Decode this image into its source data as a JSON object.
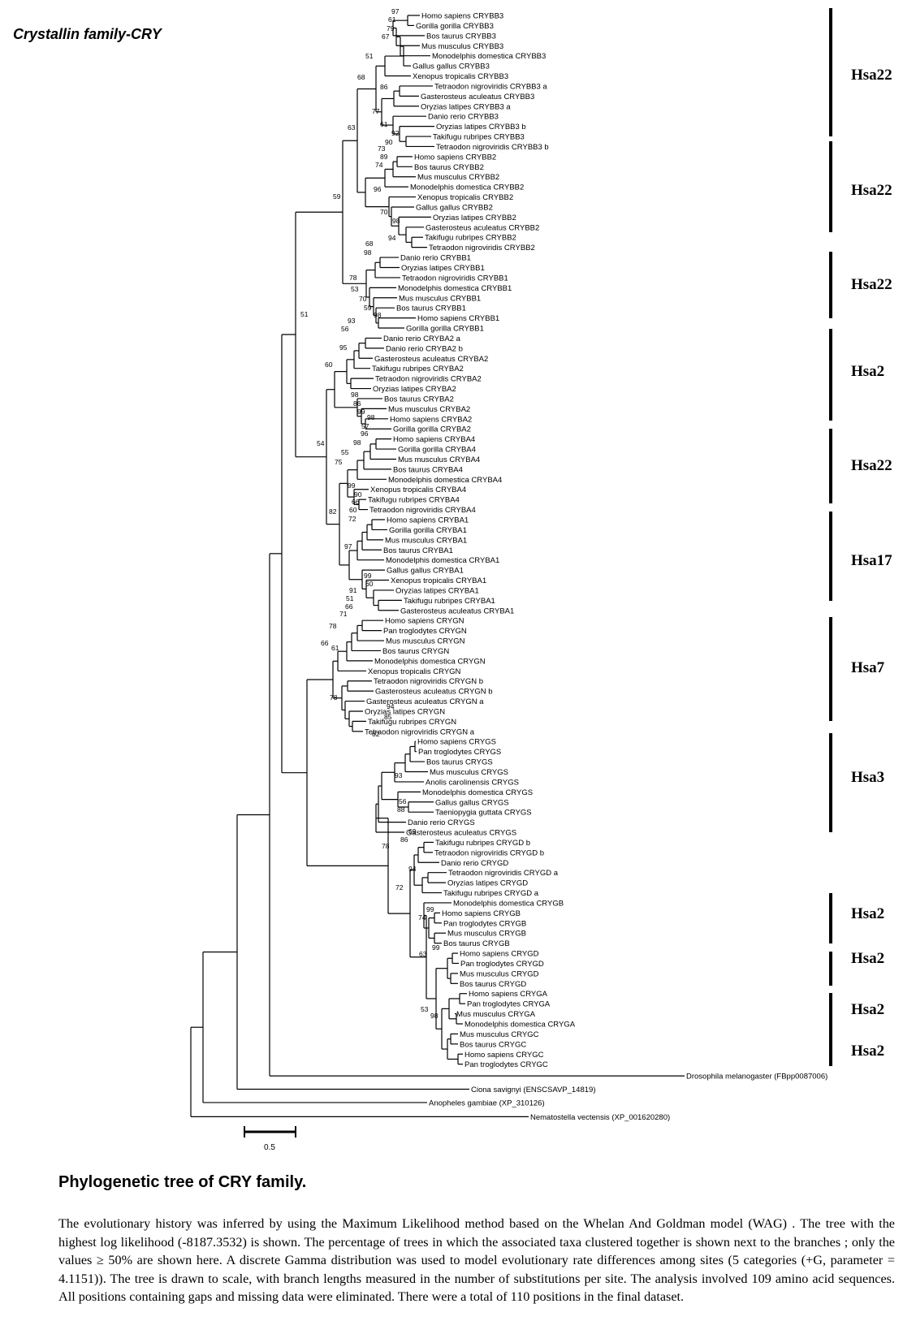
{
  "title": "Crystallin family-CRY",
  "taxa": [
    "Homo sapiens CRYBB3",
    "Gorilla gorilla CRYBB3",
    "Bos taurus CRYBB3",
    "Mus musculus CRYBB3",
    "Monodelphis domestica CRYBB3",
    "Gallus gallus CRYBB3",
    "Xenopus tropicalis CRYBB3",
    "Tetraodon nigroviridis CRYBB3 a",
    "Gasterosteus aculeatus CRYBB3",
    "Oryzias latipes CRYBB3 a",
    "Danio rerio CRYBB3",
    "Oryzias latipes CRYBB3 b",
    "Takifugu rubripes CRYBB3",
    "Tetraodon nigroviridis CRYBB3 b",
    "Homo sapiens CRYBB2",
    "Bos taurus CRYBB2",
    "Mus musculus CRYBB2",
    "Monodelphis domestica CRYBB2",
    "Xenopus tropicalis CRYBB2",
    "Gallus gallus CRYBB2",
    "Oryzias latipes CRYBB2",
    "Gasterosteus aculeatus CRYBB2",
    "Takifugu rubripes CRYBB2",
    "Tetraodon nigroviridis CRYBB2",
    "Danio rerio CRYBB1",
    "Oryzias latipes CRYBB1",
    "Tetraodon nigroviridis CRYBB1",
    "Monodelphis domestica CRYBB1",
    "Mus musculus CRYBB1",
    "Bos taurus CRYBB1",
    "Homo sapiens CRYBB1",
    "Gorilla gorilla CRYBB1",
    "Danio rerio CRYBA2 a",
    "Danio rerio CRYBA2 b",
    "Gasterosteus aculeatus CRYBA2",
    "Takifugu rubripes CRYBA2",
    "Tetraodon nigroviridis CRYBA2",
    "Oryzias latipes CRYBA2",
    "Bos taurus CRYBA2",
    "Mus musculus CRYBA2",
    "Homo sapiens CRYBA2",
    "Gorilla gorilla CRYBA2",
    "Homo sapiens CRYBA4",
    "Gorilla gorilla CRYBA4",
    "Mus musculus CRYBA4",
    "Bos taurus CRYBA4",
    "Monodelphis domestica CRYBA4",
    "Xenopus tropicalis CRYBA4",
    "Takifugu rubripes CRYBA4",
    "Tetraodon nigroviridis CRYBA4",
    "Homo sapiens CRYBA1",
    "Gorilla gorilla CRYBA1",
    "Mus musculus CRYBA1",
    "Bos taurus CRYBA1",
    "Monodelphis domestica CRYBA1",
    "Gallus gallus CRYBA1",
    "Xenopus tropicalis CRYBA1",
    "Oryzias latipes CRYBA1",
    "Takifugu rubripes CRYBA1",
    "Gasterosteus aculeatus CRYBA1",
    "Homo sapiens CRYGN",
    "Pan troglodytes CRYGN",
    "Mus musculus CRYGN",
    "Bos taurus CRYGN",
    "Monodelphis domestica CRYGN",
    "Xenopus tropicalis CRYGN",
    "Tetraodon nigroviridis CRYGN b",
    "Gasterosteus aculeatus CRYGN b",
    "Gasterosteus aculeatus CRYGN a",
    "Oryzias latipes CRYGN",
    "Takifugu rubripes CRYGN",
    "Tetraodon nigroviridis CRYGN a",
    "Homo sapiens CRYGS",
    "Pan troglodytes CRYGS",
    "Bos taurus CRYGS",
    "Mus musculus CRYGS",
    "Anolis carolinensis CRYGS",
    "Monodelphis domestica CRYGS",
    "Gallus gallus CRYGS",
    "Taeniopygia guttata CRYGS",
    "Danio rerio CRYGS",
    "Gasterosteus aculeatus CRYGS",
    "Takifugu rubripes CRYGD b",
    "Tetraodon nigroviridis CRYGD b",
    "Danio rerio CRYGD",
    "Tetraodon nigroviridis CRYGD a",
    "Oryzias latipes CRYGD",
    "Takifugu rubripes CRYGD a",
    "Monodelphis domestica CRYGB",
    "Homo sapiens CRYGB",
    "Pan troglodytes CRYGB",
    "Mus musculus CRYGB",
    "Bos taurus CRYGB",
    "Homo sapiens CRYGD",
    "Pan troglodytes CRYGD",
    "Mus musculus CRYGD",
    "Bos taurus CRYGD",
    "Homo sapiens CRYGA",
    "Pan troglodytes CRYGA",
    "Mus musculus CRYGA",
    "Monodelphis domestica CRYGA",
    "Mus musculus CRYGC",
    "Bos taurus CRYGC",
    "Homo sapiens CRYGC",
    "Pan troglodytes CRYGC",
    "Drosophila melanogaster (FBpp0087006)",
    "Ciona savignyi (ENSCSAVP_14819)",
    "Anopheles gambiae (XP_310126)",
    "Nematostella vectensis (XP_001620280)"
  ],
  "support_values": [
    "97",
    "61",
    "79",
    "67",
    "51",
    "68",
    "86",
    "77",
    "61",
    "92",
    "90",
    "63",
    "73",
    "89",
    "74",
    "96",
    "70",
    "98",
    "94",
    "59",
    "68",
    "98",
    "78",
    "53",
    "70",
    "59",
    "98",
    "51",
    "93",
    "56",
    "95",
    "60",
    "98",
    "86",
    "99",
    "54",
    "98",
    "57",
    "96",
    "98",
    "55",
    "75",
    "99",
    "82",
    "90",
    "66",
    "60",
    "72",
    "97",
    "99",
    "60",
    "91",
    "51",
    "66",
    "71",
    "78",
    "66",
    "61",
    "78",
    "94",
    "85",
    "62",
    "93",
    "56",
    "88",
    "69",
    "86",
    "78",
    "94",
    "72",
    "99",
    "74",
    "99",
    "63",
    "53",
    "98"
  ],
  "chromosome_groups": [
    "Hsa22",
    "Hsa22",
    "Hsa22",
    "Hsa2",
    "Hsa22",
    "Hsa17",
    "Hsa7",
    "Hsa3",
    "Hsa2",
    "Hsa2",
    "Hsa2",
    "Hsa2"
  ],
  "scale_bar": {
    "label": "0.5"
  },
  "caption": {
    "heading": "Phylogenetic tree of CRY family.",
    "text": "The evolutionary history was inferred by using the Maximum Likelihood method based on the Whelan And Goldman model (WAG) . The tree with the highest log likelihood (-8187.3532) is shown. The percentage of trees in which the associated taxa clustered together is shown next to the branches ; only the values ≥ 50% are shown here. A discrete Gamma distribution was used to model evolutionary rate differences among sites (5 categories (+G, parameter = 4.1151)). The tree is drawn to scale, with branch lengths measured in the number of substitutions per site. The analysis involved 109 amino acid sequences. All positions containing gaps and missing data were eliminated. There were a total of 110 positions in the final dataset."
  }
}
